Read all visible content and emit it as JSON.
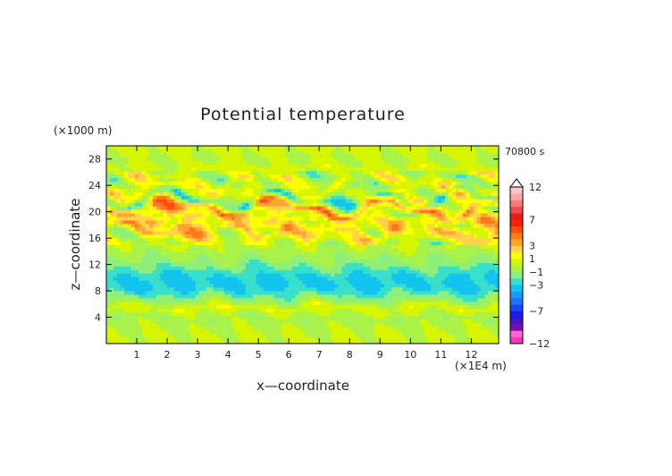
{
  "chart_data": {
    "type": "heatmap",
    "title": "Potential temperature",
    "time_label": "70800 s",
    "xlabel": "x—coordinate",
    "ylabel": "z—coordinate",
    "x_unit": "(×1E4 m)",
    "y_unit": "(×1000 m)",
    "xlim": [
      0,
      12.9
    ],
    "ylim": [
      0,
      30
    ],
    "xticks": [
      1,
      2,
      3,
      4,
      5,
      6,
      7,
      8,
      9,
      10,
      11,
      12
    ],
    "yticks": [
      4,
      8,
      12,
      16,
      20,
      24,
      28
    ],
    "colorbar": {
      "levels": [
        -12,
        -11,
        -10,
        -9,
        -8,
        -7,
        -6,
        -5,
        -4,
        -3,
        -2,
        -1,
        0,
        1,
        2,
        3,
        4,
        5,
        6,
        7,
        8,
        9,
        10,
        11,
        12
      ],
      "labels": [
        "12",
        "7",
        "3",
        "1",
        "−1",
        "−3",
        "−7",
        "−12"
      ],
      "label_values": [
        12,
        7,
        3,
        1,
        -1,
        -3,
        -7,
        -12
      ],
      "colors": [
        "#ff33bb",
        "#ff66cc",
        "#7a0bb0",
        "#4a0fc9",
        "#1a1ae6",
        "#1848f0",
        "#1e73ff",
        "#1c99ff",
        "#12c4ee",
        "#38e0cc",
        "#8ef07a",
        "#a8f24a",
        "#d6f500",
        "#ffff00",
        "#ffd24a",
        "#ffa530",
        "#ff7a1a",
        "#ff5010",
        "#ff1e00",
        "#e81a1a",
        "#f04a4a",
        "#ff7a7a",
        "#ffa8a8",
        "#ffc8c8"
      ],
      "over_color": "#ffffff"
    },
    "bands": [
      {
        "z": 1.0,
        "value": 0.2
      },
      {
        "z": 2.5,
        "value": -0.2
      },
      {
        "z": 4.0,
        "value": -0.6
      },
      {
        "z": 5.5,
        "value": 0.7
      },
      {
        "z": 7.0,
        "value": -1.5
      },
      {
        "z": 8.5,
        "value": -3.2
      },
      {
        "z": 10.0,
        "value": -3.3
      },
      {
        "z": 11.5,
        "value": -2.0
      },
      {
        "z": 13.0,
        "value": -0.8
      },
      {
        "z": 14.5,
        "value": -0.3
      },
      {
        "z": 16.0,
        "value": 0.8
      },
      {
        "z": 17.5,
        "value": 3.0
      },
      {
        "z": 19.0,
        "value": 0.5
      },
      {
        "z": 20.5,
        "value": 3.5
      },
      {
        "z": 22.0,
        "value": -1.8
      },
      {
        "z": 23.5,
        "value": 1.5
      },
      {
        "z": 25.0,
        "value": -0.5
      },
      {
        "z": 26.5,
        "value": 0.6
      },
      {
        "z": 28.0,
        "value": -0.2
      },
      {
        "z": 29.5,
        "value": 0.4
      }
    ]
  }
}
